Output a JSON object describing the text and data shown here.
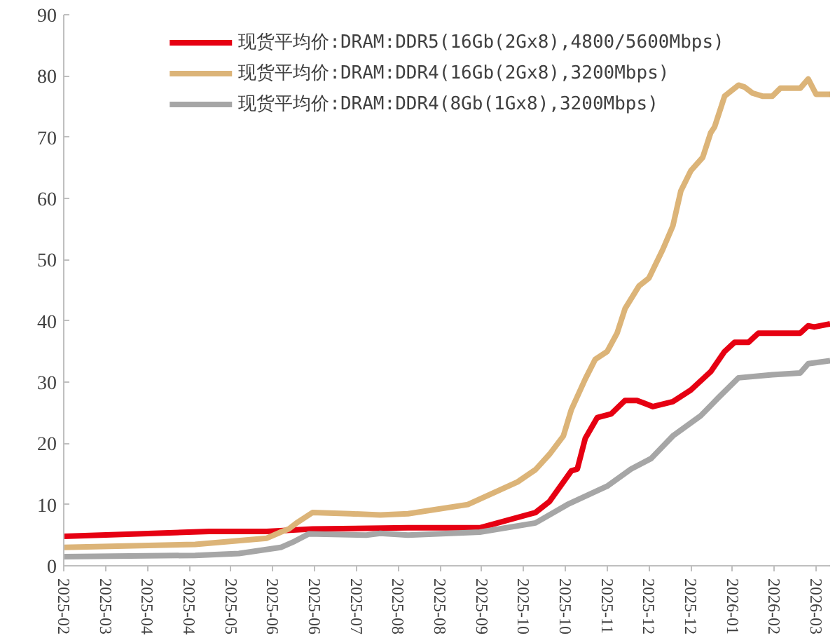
{
  "chart_data": {
    "type": "line",
    "xlim": [
      "2025-02-18",
      "2026-03-10"
    ],
    "ylim": [
      0,
      90
    ],
    "xticks": [
      {
        "value": "2025-02-18",
        "label": "2025-02"
      },
      {
        "value": "2025-03-11",
        "label": "2025-03"
      },
      {
        "value": "2025-04-01",
        "label": "2025-04"
      },
      {
        "value": "2025-04-22",
        "label": "2025-04"
      },
      {
        "value": "2025-05-13",
        "label": "2025-05"
      },
      {
        "value": "2025-06-03",
        "label": "2025-06"
      },
      {
        "value": "2025-06-24",
        "label": "2025-06"
      },
      {
        "value": "2025-07-15",
        "label": "2025-07"
      },
      {
        "value": "2025-08-05",
        "label": "2025-08"
      },
      {
        "value": "2025-08-26",
        "label": "2025-08"
      },
      {
        "value": "2025-09-16",
        "label": "2025-09"
      },
      {
        "value": "2025-10-07",
        "label": "2025-10"
      },
      {
        "value": "2025-10-28",
        "label": "2025-10"
      },
      {
        "value": "2025-11-18",
        "label": "2025-11"
      },
      {
        "value": "2025-12-09",
        "label": "2025-12"
      },
      {
        "value": "2025-12-30",
        "label": "2025-12"
      },
      {
        "value": "2026-01-20",
        "label": "2026-01"
      },
      {
        "value": "2026-02-10",
        "label": "2026-02"
      },
      {
        "value": "2026-03-03",
        "label": "2026-03"
      }
    ],
    "yticks": [
      0,
      10,
      20,
      30,
      40,
      50,
      60,
      70,
      80,
      90
    ],
    "grid": false,
    "legend": "top",
    "marker": "none",
    "line_style": "solid",
    "series": [
      {
        "name": "现货平均价:DRAM:DDR5(16Gb(2Gx8),4800/5600Mbps)",
        "color": "#e60012",
        "x": [
          "2025-02-18",
          "2025-04-04",
          "2025-05-02",
          "2025-05-31",
          "2025-06-23",
          "2025-08-10",
          "2025-09-15",
          "2025-10-13",
          "2025-10-20",
          "2025-10-31",
          "2025-11-03",
          "2025-11-07",
          "2025-11-13",
          "2025-11-20",
          "2025-11-27",
          "2025-12-03",
          "2025-12-07",
          "2025-12-11",
          "2025-12-21",
          "2025-12-30",
          "2026-01-09",
          "2026-01-16",
          "2026-01-21",
          "2026-01-28",
          "2026-02-02",
          "2026-02-23",
          "2026-02-27",
          "2026-03-02",
          "2026-03-10"
        ],
        "values": [
          4.8,
          5.3,
          5.6,
          5.6,
          6,
          6.2,
          6.2,
          8.7,
          10.5,
          15.5,
          15.8,
          20.8,
          24.2,
          24.8,
          27,
          27,
          26.5,
          26,
          26.8,
          28.7,
          31.7,
          35,
          36.5,
          36.5,
          38,
          38,
          39.2,
          39,
          39.5
        ]
      },
      {
        "name": "现货平均价:DRAM:DDR4(16Gb(2Gx8),3200Mbps)",
        "color": "#dcb478",
        "x": [
          "2025-02-18",
          "2025-04-25",
          "2025-05-31",
          "2025-06-07",
          "2025-06-11",
          "2025-06-15",
          "2025-06-23",
          "2025-07-12",
          "2025-07-27",
          "2025-08-10",
          "2025-09-09",
          "2025-10-04",
          "2025-10-13",
          "2025-10-20",
          "2025-10-27",
          "2025-10-31",
          "2025-11-07",
          "2025-11-12",
          "2025-11-18",
          "2025-11-23",
          "2025-11-27",
          "2025-12-04",
          "2025-12-09",
          "2025-12-16",
          "2025-12-21",
          "2025-12-25",
          "2025-12-30",
          "2026-01-05",
          "2026-01-09",
          "2026-01-11",
          "2026-01-16",
          "2026-01-23",
          "2026-01-26",
          "2026-01-30",
          "2026-02-04",
          "2026-02-09",
          "2026-02-13",
          "2026-02-23",
          "2026-02-27",
          "2026-03-03",
          "2026-03-10"
        ],
        "values": [
          3,
          3.5,
          4.5,
          5.5,
          6,
          7,
          8.7,
          8.5,
          8.3,
          8.5,
          10,
          13.7,
          15.7,
          18.2,
          21.2,
          25.5,
          30.5,
          33.7,
          35,
          38,
          42,
          45.7,
          47,
          51.7,
          55.5,
          61.2,
          64.5,
          66.7,
          70.7,
          71.7,
          76.7,
          78.5,
          78.2,
          77.2,
          76.7,
          76.7,
          78,
          78,
          79.5,
          77,
          77
        ]
      },
      {
        "name": "现货平均价:DRAM:DDR4(8Gb(1Gx8),3200Mbps)",
        "color": "#a6a6a6",
        "x": [
          "2025-02-18",
          "2025-04-25",
          "2025-05-17",
          "2025-06-07",
          "2025-06-14",
          "2025-06-21",
          "2025-07-20",
          "2025-07-27",
          "2025-08-10",
          "2025-09-15",
          "2025-10-13",
          "2025-10-29",
          "2025-11-18",
          "2025-11-30",
          "2025-12-10",
          "2025-12-21",
          "2026-01-04",
          "2026-01-13",
          "2026-01-23",
          "2026-02-09",
          "2026-02-23",
          "2026-02-27",
          "2026-03-10"
        ],
        "values": [
          1.5,
          1.7,
          2,
          3,
          4,
          5.2,
          5,
          5.3,
          5,
          5.5,
          7,
          10,
          13,
          15.8,
          17.5,
          21.2,
          24.5,
          27.5,
          30.7,
          31.2,
          31.5,
          33,
          33.5
        ]
      }
    ]
  }
}
